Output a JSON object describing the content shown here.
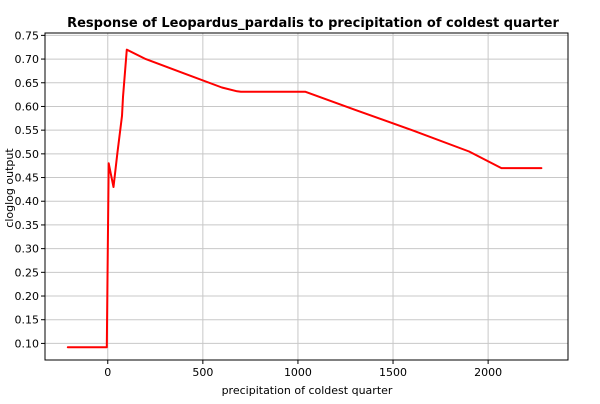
{
  "chart_data": {
    "type": "line",
    "title": "Response of Leopardus_pardalis to precipitation of coldest quarter",
    "xlabel": "precipitation of coldest quarter",
    "ylabel": "cloglog output",
    "xlim": [
      -330,
      2420
    ],
    "ylim": [
      0.065,
      0.755
    ],
    "xticks": [
      0,
      500,
      1000,
      1500,
      2000
    ],
    "yticks": [
      0.1,
      0.15,
      0.2,
      0.25,
      0.3,
      0.35,
      0.4,
      0.45,
      0.5,
      0.55,
      0.6,
      0.65,
      0.7,
      0.75
    ],
    "grid": true,
    "series": [
      {
        "color": "#ff0000",
        "x": [
          -210,
          -5,
          0,
          5,
          15,
          30,
          50,
          75,
          80,
          100,
          200,
          400,
          600,
          680,
          700,
          1040,
          1300,
          1600,
          1900,
          2070,
          2280
        ],
        "y": [
          0.092,
          0.092,
          0.3,
          0.48,
          0.46,
          0.43,
          0.5,
          0.58,
          0.62,
          0.72,
          0.7,
          0.67,
          0.64,
          0.632,
          0.631,
          0.631,
          0.593,
          0.55,
          0.505,
          0.47,
          0.47
        ]
      }
    ]
  }
}
